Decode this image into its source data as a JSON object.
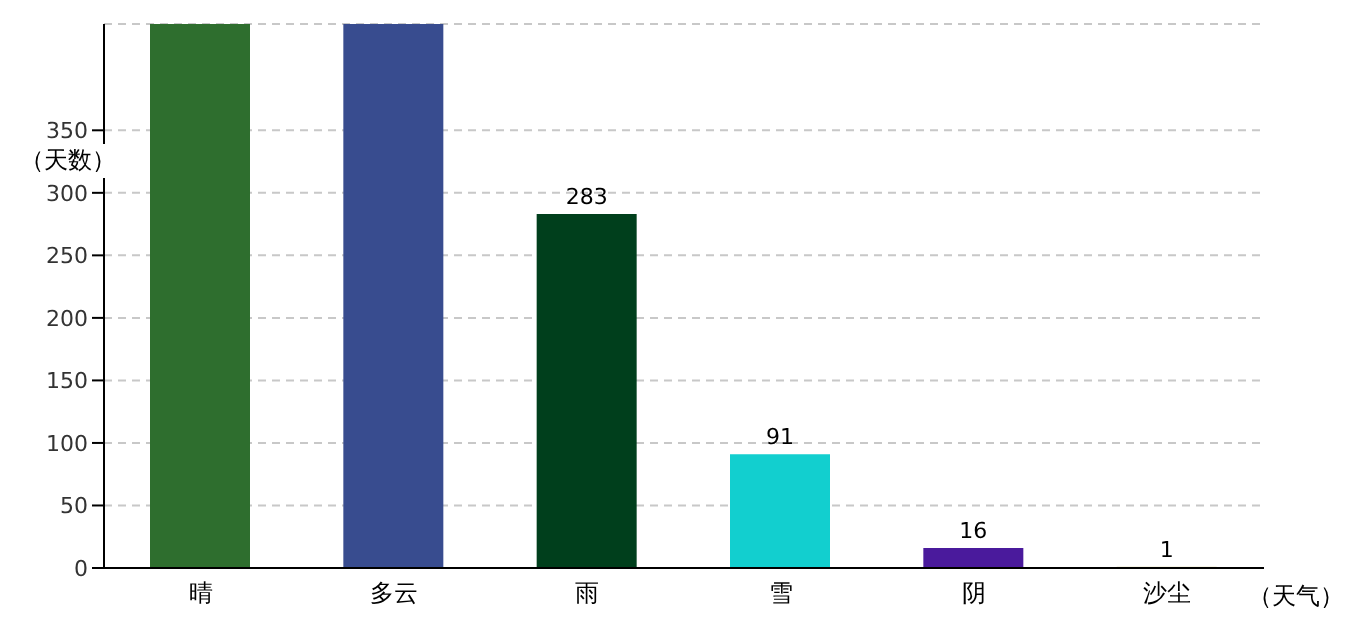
{
  "chart_data": {
    "type": "bar",
    "xlabel": "（天气）",
    "ylabel": "（天数）",
    "categories": [
      "晴",
      "多云",
      "雨",
      "雪",
      "阴",
      "沙尘"
    ],
    "values": [
      435,
      435,
      283,
      91,
      16,
      1
    ],
    "value_labels": [
      null,
      null,
      "283",
      "91",
      "16",
      "1"
    ],
    "colors": [
      "#2e6e2e",
      "#384c8f",
      "#003f1c",
      "#12cfcf",
      "#4a1a9c",
      "#e0d8a0"
    ],
    "ylim": [
      0,
      435
    ],
    "yticks": [
      0,
      50,
      100,
      150,
      200,
      250,
      300,
      350
    ],
    "grid": "y"
  }
}
